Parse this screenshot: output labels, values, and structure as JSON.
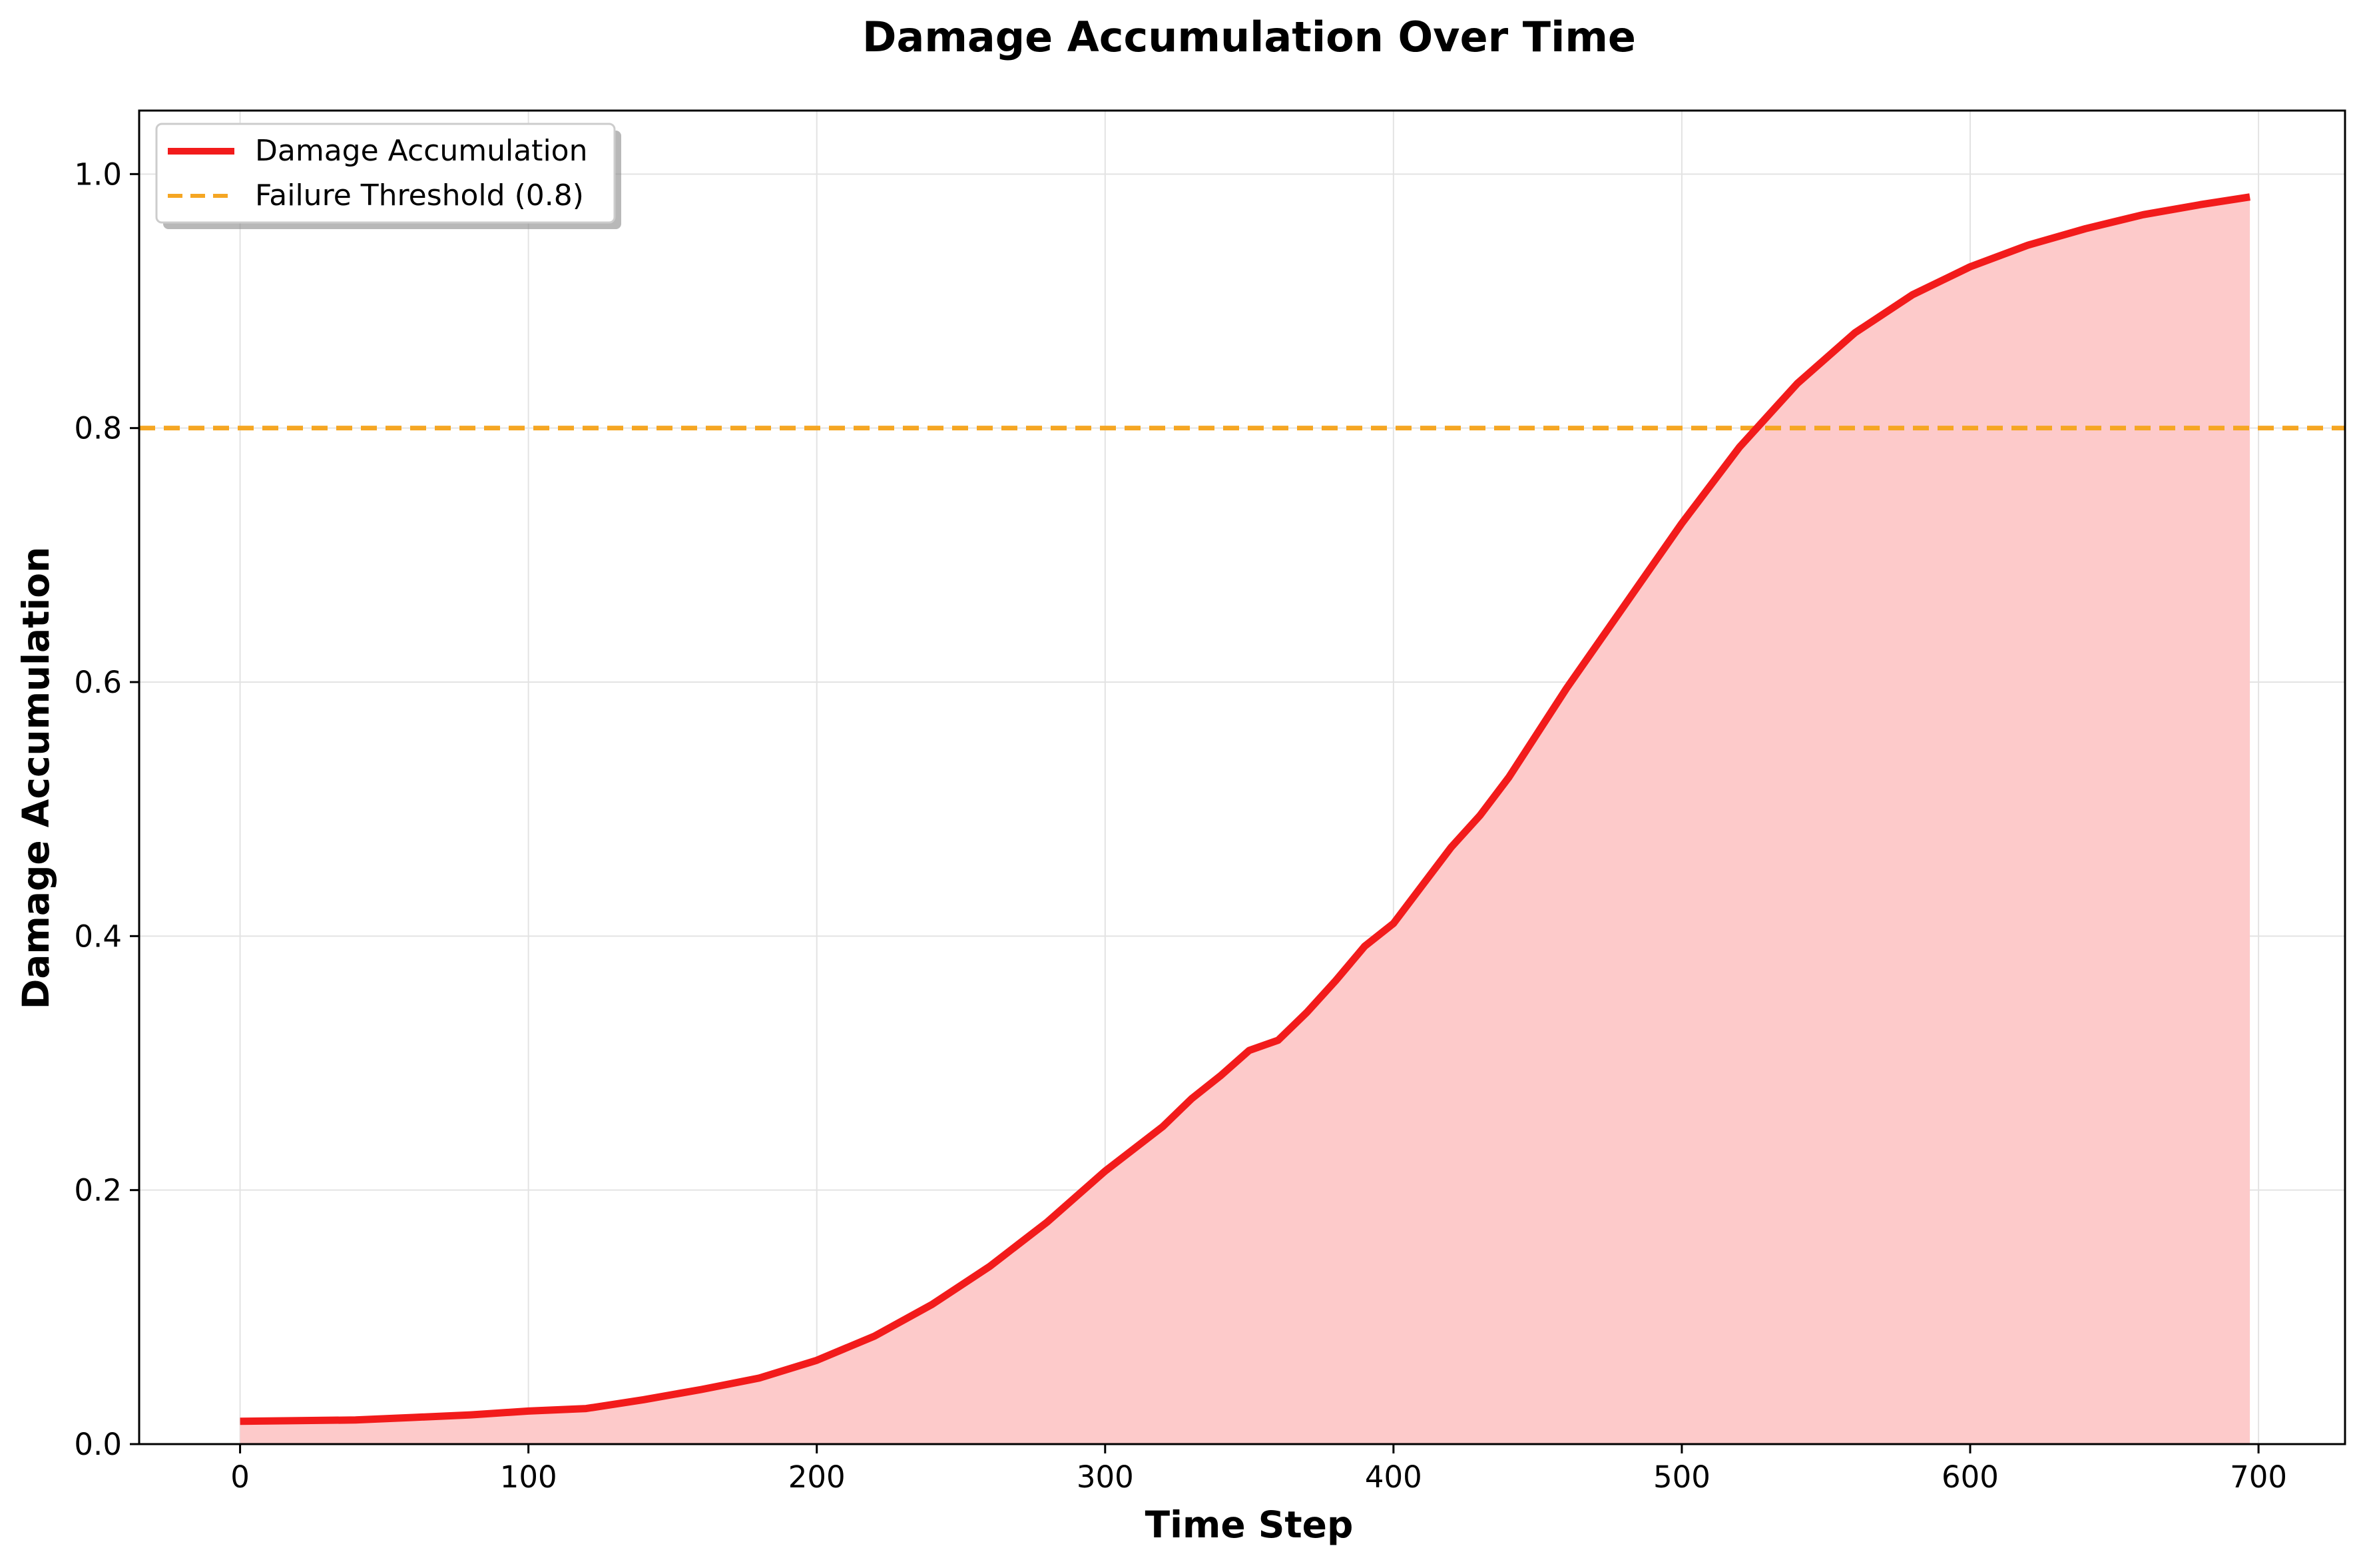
{
  "chart_data": {
    "type": "line",
    "title": "Damage Accumulation Over Time",
    "xlabel": "Time Step",
    "ylabel": "Damage Accumulation",
    "xlim": [
      -35,
      730
    ],
    "ylim": [
      0,
      1.05
    ],
    "xticks": [
      "0",
      "100",
      "200",
      "300",
      "400",
      "500",
      "600",
      "700"
    ],
    "yticks": [
      "0.0",
      "0.2",
      "0.4",
      "0.6",
      "0.8",
      "1.0"
    ],
    "grid": true,
    "legend_position": "top-left",
    "series": [
      {
        "name": "Damage Accumulation",
        "color": "#f21b1b",
        "fill_color": "#fdcaca",
        "style": "solid",
        "x": [
          0,
          20,
          40,
          60,
          80,
          100,
          120,
          140,
          160,
          180,
          200,
          220,
          240,
          260,
          280,
          300,
          320,
          330,
          340,
          350,
          360,
          370,
          380,
          390,
          400,
          410,
          420,
          430,
          440,
          450,
          460,
          480,
          500,
          520,
          540,
          560,
          580,
          600,
          620,
          640,
          660,
          680,
          697
        ],
        "y": [
          0.018,
          0.0185,
          0.019,
          0.021,
          0.023,
          0.026,
          0.028,
          0.035,
          0.043,
          0.052,
          0.066,
          0.085,
          0.11,
          0.14,
          0.175,
          0.215,
          0.25,
          0.272,
          0.29,
          0.31,
          0.318,
          0.34,
          0.365,
          0.392,
          0.41,
          0.44,
          0.47,
          0.495,
          0.525,
          0.56,
          0.595,
          0.66,
          0.725,
          0.785,
          0.835,
          0.875,
          0.905,
          0.927,
          0.944,
          0.957,
          0.968,
          0.976,
          0.982
        ]
      },
      {
        "name": "Failure Threshold (0.8)",
        "color": "#f5a623",
        "style": "dashed",
        "y_constant": 0.8
      }
    ]
  }
}
